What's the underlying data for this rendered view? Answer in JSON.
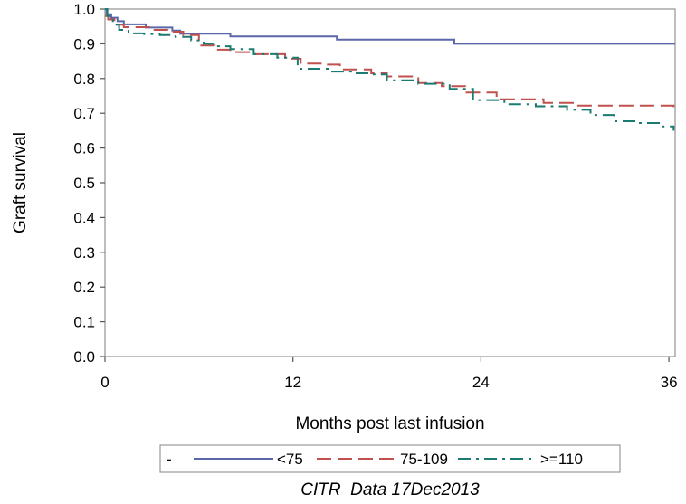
{
  "chart_data": {
    "type": "line",
    "xlabel": "Months post last infusion",
    "ylabel": "Graft survival",
    "xlim": [
      0,
      36.4
    ],
    "ylim": [
      0,
      1.0
    ],
    "xticks": [
      "0",
      "12",
      "24",
      "36"
    ],
    "yticks": [
      "0.0",
      "0.1",
      "0.2",
      "0.3",
      "0.4",
      "0.5",
      "0.6",
      "0.7",
      "0.8",
      "0.9",
      "1.0"
    ],
    "grid": false,
    "legend": {
      "position": "bottom",
      "prefix": "-",
      "entries": [
        "<75",
        "75-109",
        ">=110"
      ]
    },
    "footnote": "CITR  Data 17Dec2013",
    "series": [
      {
        "name": "<75",
        "color": "#5a67a8",
        "dash": "solid",
        "x": [
          0,
          0.1,
          0.4,
          0.8,
          1.2,
          2.3,
          2.6,
          3.9,
          4.3,
          4.8,
          5.5,
          7.6,
          8.0,
          13.7,
          14.8,
          16.9,
          22.3,
          36.4
        ],
        "y": [
          1.0,
          0.985,
          0.975,
          0.965,
          0.956,
          0.956,
          0.947,
          0.947,
          0.938,
          0.929,
          0.929,
          0.929,
          0.921,
          0.921,
          0.912,
          0.912,
          0.9,
          0.9
        ]
      },
      {
        "name": "75-109",
        "color": "#c0504d",
        "dash": "long-dash",
        "x": [
          0,
          0.2,
          0.6,
          1.2,
          2.0,
          3.0,
          4.0,
          5.0,
          6.0,
          7.0,
          8.0,
          9.5,
          11.5,
          12.5,
          14.0,
          15.0,
          17.0,
          18.0,
          20.0,
          21.5,
          23.0,
          25.0,
          28.0,
          30.0,
          32.0,
          35.5,
          36.3
        ],
        "y": [
          0.98,
          0.97,
          0.955,
          0.948,
          0.948,
          0.94,
          0.935,
          0.925,
          0.895,
          0.883,
          0.876,
          0.87,
          0.857,
          0.843,
          0.84,
          0.826,
          0.815,
          0.806,
          0.787,
          0.778,
          0.76,
          0.74,
          0.73,
          0.722,
          0.722,
          0.722,
          0.715
        ]
      },
      {
        "name": ">=110",
        "color": "#1b7a72",
        "dash": "dash-dot",
        "x": [
          0,
          0.15,
          0.5,
          0.9,
          1.5,
          2.5,
          3.5,
          4.5,
          5.5,
          6.3,
          7.0,
          8.0,
          9.5,
          11.0,
          12.3,
          13.5,
          14.5,
          16.0,
          17.0,
          18.0,
          20.0,
          22.0,
          23.5,
          25.5,
          27.5,
          29.5,
          31.0,
          32.5,
          34.0,
          35.5,
          36.3
        ],
        "y": [
          1.0,
          0.98,
          0.955,
          0.94,
          0.93,
          0.928,
          0.925,
          0.92,
          0.91,
          0.9,
          0.893,
          0.885,
          0.87,
          0.86,
          0.828,
          0.828,
          0.82,
          0.815,
          0.812,
          0.795,
          0.785,
          0.77,
          0.738,
          0.726,
          0.72,
          0.71,
          0.695,
          0.677,
          0.672,
          0.662,
          0.65
        ]
      }
    ]
  }
}
